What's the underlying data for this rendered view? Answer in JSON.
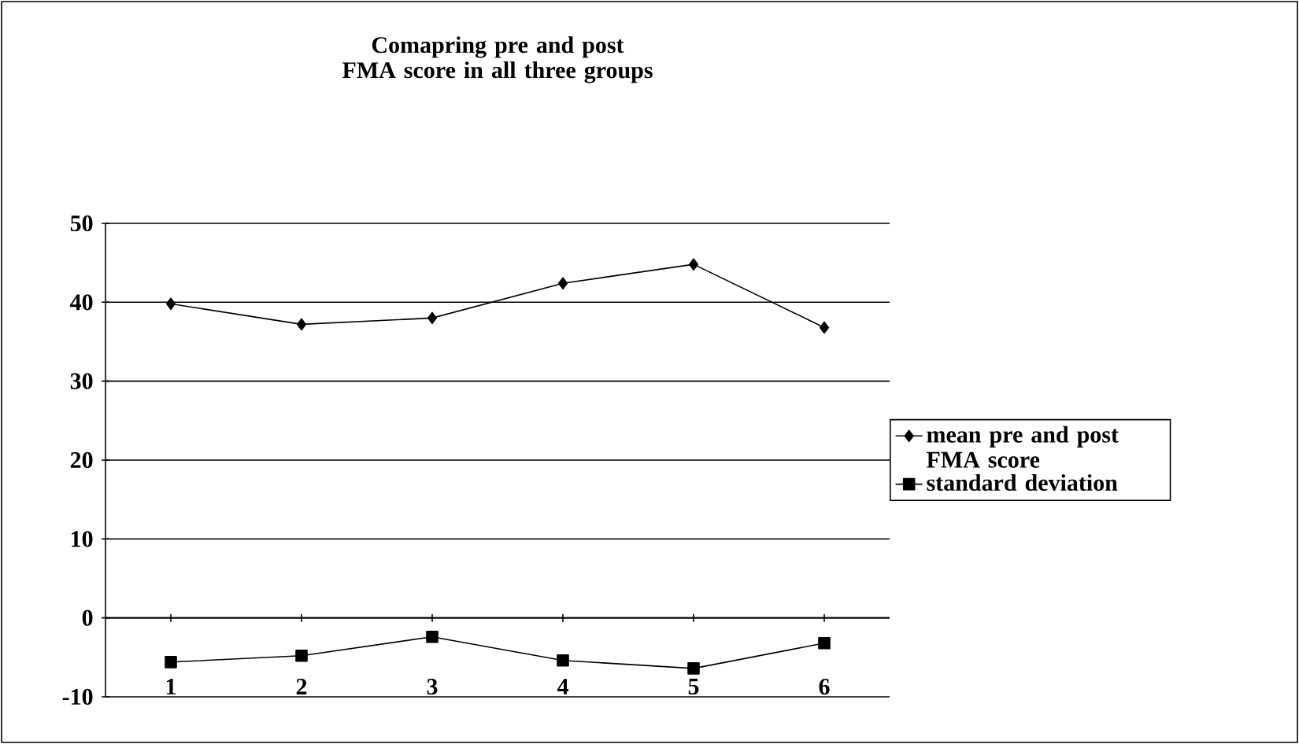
{
  "chart_data": {
    "type": "line",
    "title": "Comapring pre and post FMA score in all three groups",
    "categories": [
      "1",
      "2",
      "3",
      "4",
      "5",
      "6"
    ],
    "series": [
      {
        "name": "mean pre and post FMA score",
        "color": "#000000",
        "marker": "diamond",
        "values": [
          39.8,
          37.2,
          38,
          42.4,
          44.8,
          36.8
        ]
      },
      {
        "name": "standard deviation",
        "color": "#000000",
        "marker": "square",
        "values": [
          -5.6,
          -4.8,
          -2.4,
          -5.4,
          -6.4,
          -3.2
        ]
      }
    ],
    "ylim": [
      -10,
      50
    ],
    "yticks": [
      -10,
      0,
      10,
      20,
      30,
      40,
      50
    ],
    "grid": "y",
    "legend": "right",
    "line_style": "solid"
  }
}
